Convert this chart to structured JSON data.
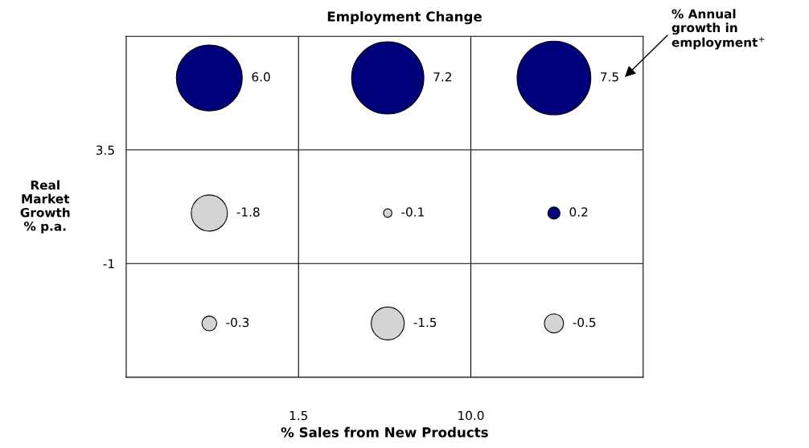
{
  "chart_data": {
    "type": "bubble",
    "title": "Employment Change",
    "xlabel": "% Sales from New Products",
    "ylabel": "Real\nMarket\nGrowth\n% p.a.",
    "xlim": [
      -7,
      18.5
    ],
    "xticks": [
      1.5,
      {
        "value": 10,
        "label": "10.0"
      }
    ],
    "ylim": [
      -5.5,
      8
    ],
    "yticks": [
      -1,
      3.5
    ],
    "grid": true,
    "series": [
      {
        "x": [
          -2.9,
          5.9,
          14.1,
          -2.9,
          5.9,
          14.1,
          -2.9,
          5.9,
          14.1
        ],
        "values": [
          6.35,
          6.35,
          6.35,
          1.0,
          1.0,
          1.0,
          -3.37,
          -3.37,
          -3.37
        ],
        "sizes": [
          0.8,
          0.96,
          1,
          0.24,
          0.013,
          0.027,
          0.04,
          0.2,
          0.067
        ],
        "colors": [
          "#00007a",
          "#00007a",
          "#00007a",
          "#d4d4d4",
          "#d4d4d4",
          "#00007a",
          "#d4d4d4",
          "#d4d4d4",
          "#d4d4d4"
        ]
      }
    ],
    "annotations": [
      "6.0",
      "7.2",
      "7.5",
      "-1.8",
      "-0.1",
      "0.2",
      "-0.3",
      "-1.5",
      "-0.5",
      "% Annual\ngrowth in\nemployment$^{+}$"
    ]
  }
}
